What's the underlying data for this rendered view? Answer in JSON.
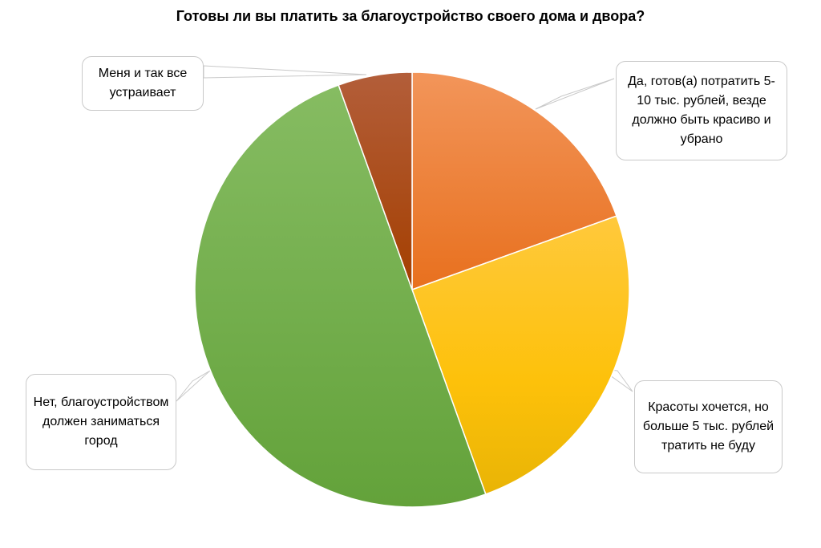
{
  "chart_data": {
    "type": "pie",
    "title": "Готовы ли вы платить за благоустройство своего дома и двора?",
    "slices": [
      {
        "label": "Да, готов(а) потратить 5-10 тыс. рублей, везде должно быть красиво и убрано",
        "value": 19.5,
        "color": "#ee7828"
      },
      {
        "label": "Красоты хочется, но больше 5 тыс. рублей тратить не буду",
        "value": 25,
        "color": "#fbc21c"
      },
      {
        "label": "Нет, благоустройством должен заниматься город",
        "value": 50,
        "color": "#6fac46"
      },
      {
        "label": "Меня и так все устраивает",
        "value": 5.5,
        "color": "#9f4a1e"
      }
    ],
    "legend": "none",
    "start_angle_deg": 0,
    "direction": "clockwise"
  }
}
